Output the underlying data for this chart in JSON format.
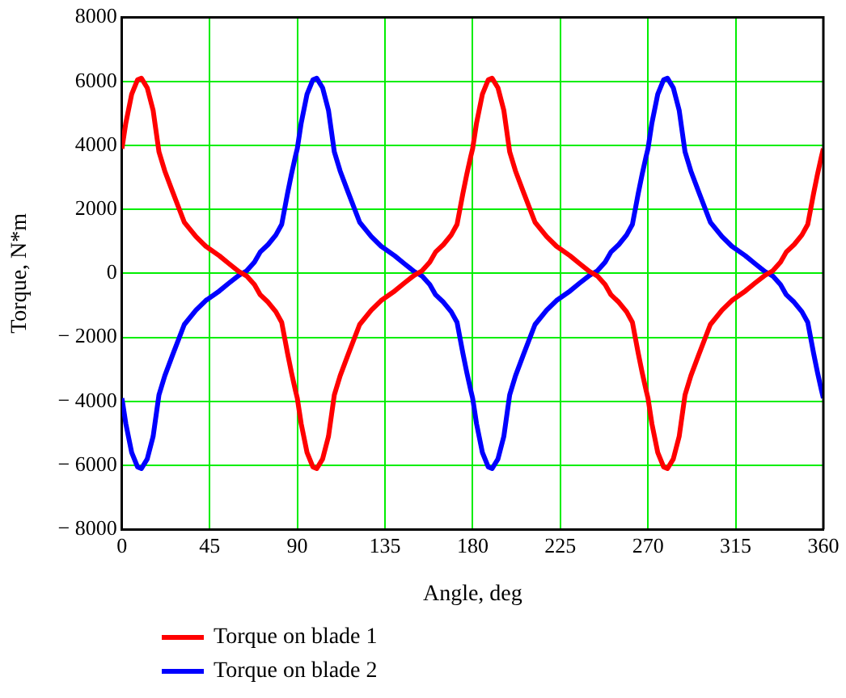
{
  "chart_data": {
    "type": "line",
    "xlabel": "Angle, deg",
    "ylabel": "Torque, N*m",
    "x": [
      0,
      2,
      5,
      8,
      10,
      13,
      16,
      19,
      22,
      26,
      32,
      38,
      43,
      50,
      55,
      60,
      64,
      68,
      71,
      75,
      79,
      82,
      85,
      87,
      89,
      90,
      92,
      95,
      98,
      100,
      103,
      106,
      109,
      112,
      116,
      122,
      128,
      133,
      140,
      145,
      150,
      154,
      158,
      161,
      165,
      169,
      172,
      175,
      177,
      179,
      180,
      182,
      185,
      188,
      190,
      193,
      196,
      199,
      202,
      206,
      212,
      218,
      223,
      230,
      235,
      240,
      244,
      248,
      251,
      255,
      259,
      262,
      265,
      267,
      269,
      270,
      272,
      275,
      278,
      280,
      283,
      286,
      289,
      292,
      296,
      302,
      308,
      313,
      320,
      325,
      330,
      334,
      338,
      341,
      345,
      349,
      352,
      355,
      357,
      359,
      360
    ],
    "series": [
      {
        "name": "Torque on blade 1",
        "color": "#ff0000",
        "values": [
          3900,
          4700,
          5600,
          6050,
          6100,
          5800,
          5100,
          3800,
          3200,
          2550,
          1600,
          1150,
          850,
          550,
          300,
          60,
          -80,
          -350,
          -670,
          -900,
          -1200,
          -1530,
          -2500,
          -3100,
          -3650,
          -3900,
          -4700,
          -5600,
          -6050,
          -6100,
          -5800,
          -5100,
          -3800,
          -3200,
          -2550,
          -1600,
          -1150,
          -850,
          -550,
          -300,
          -60,
          80,
          350,
          670,
          900,
          1200,
          1530,
          2500,
          3100,
          3650,
          3900,
          4700,
          5600,
          6050,
          6100,
          5800,
          5100,
          3800,
          3200,
          2550,
          1600,
          1150,
          850,
          550,
          300,
          60,
          -80,
          -350,
          -670,
          -900,
          -1200,
          -1530,
          -2500,
          -3100,
          -3650,
          -3900,
          -4700,
          -5600,
          -6050,
          -6100,
          -5800,
          -5100,
          -3800,
          -3200,
          -2550,
          -1600,
          -1150,
          -850,
          -550,
          -300,
          -60,
          80,
          350,
          670,
          900,
          1200,
          1530,
          2500,
          3100,
          3650,
          3900
        ]
      },
      {
        "name": "Torque on blade 2",
        "color": "#0000ff",
        "values": [
          -3900,
          -4700,
          -5600,
          -6050,
          -6100,
          -5800,
          -5100,
          -3800,
          -3200,
          -2550,
          -1600,
          -1150,
          -850,
          -550,
          -300,
          -60,
          80,
          350,
          670,
          900,
          1200,
          1530,
          2500,
          3100,
          3650,
          3900,
          4700,
          5600,
          6050,
          6100,
          5800,
          5100,
          3800,
          3200,
          2550,
          1600,
          1150,
          850,
          550,
          300,
          60,
          -80,
          -350,
          -670,
          -900,
          -1200,
          -1530,
          -2500,
          -3100,
          -3650,
          -3900,
          -4700,
          -5600,
          -6050,
          -6100,
          -5800,
          -5100,
          -3800,
          -3200,
          -2550,
          -1600,
          -1150,
          -850,
          -550,
          -300,
          -60,
          80,
          350,
          670,
          900,
          1200,
          1530,
          2500,
          3100,
          3650,
          3900,
          4700,
          5600,
          6050,
          6100,
          5800,
          5100,
          3800,
          3200,
          2550,
          1600,
          1150,
          850,
          550,
          300,
          60,
          -80,
          -350,
          -670,
          -900,
          -1200,
          -1530,
          -2500,
          -3100,
          -3650,
          -3900
        ]
      }
    ],
    "xlim": [
      0,
      360
    ],
    "xticks": [
      0,
      45,
      90,
      135,
      180,
      225,
      270,
      315,
      360
    ],
    "ylim": [
      -8000,
      8000
    ],
    "yticks": [
      {
        "value": -8000,
        "label": "− 8000"
      },
      {
        "value": -6000,
        "label": "− 6000"
      },
      {
        "value": -4000,
        "label": "− 4000"
      },
      {
        "value": -2000,
        "label": "− 2000"
      },
      0,
      2000,
      4000,
      6000,
      8000
    ],
    "grid": true,
    "legend": "bottom left",
    "marker": "none",
    "line_style": "solid"
  }
}
